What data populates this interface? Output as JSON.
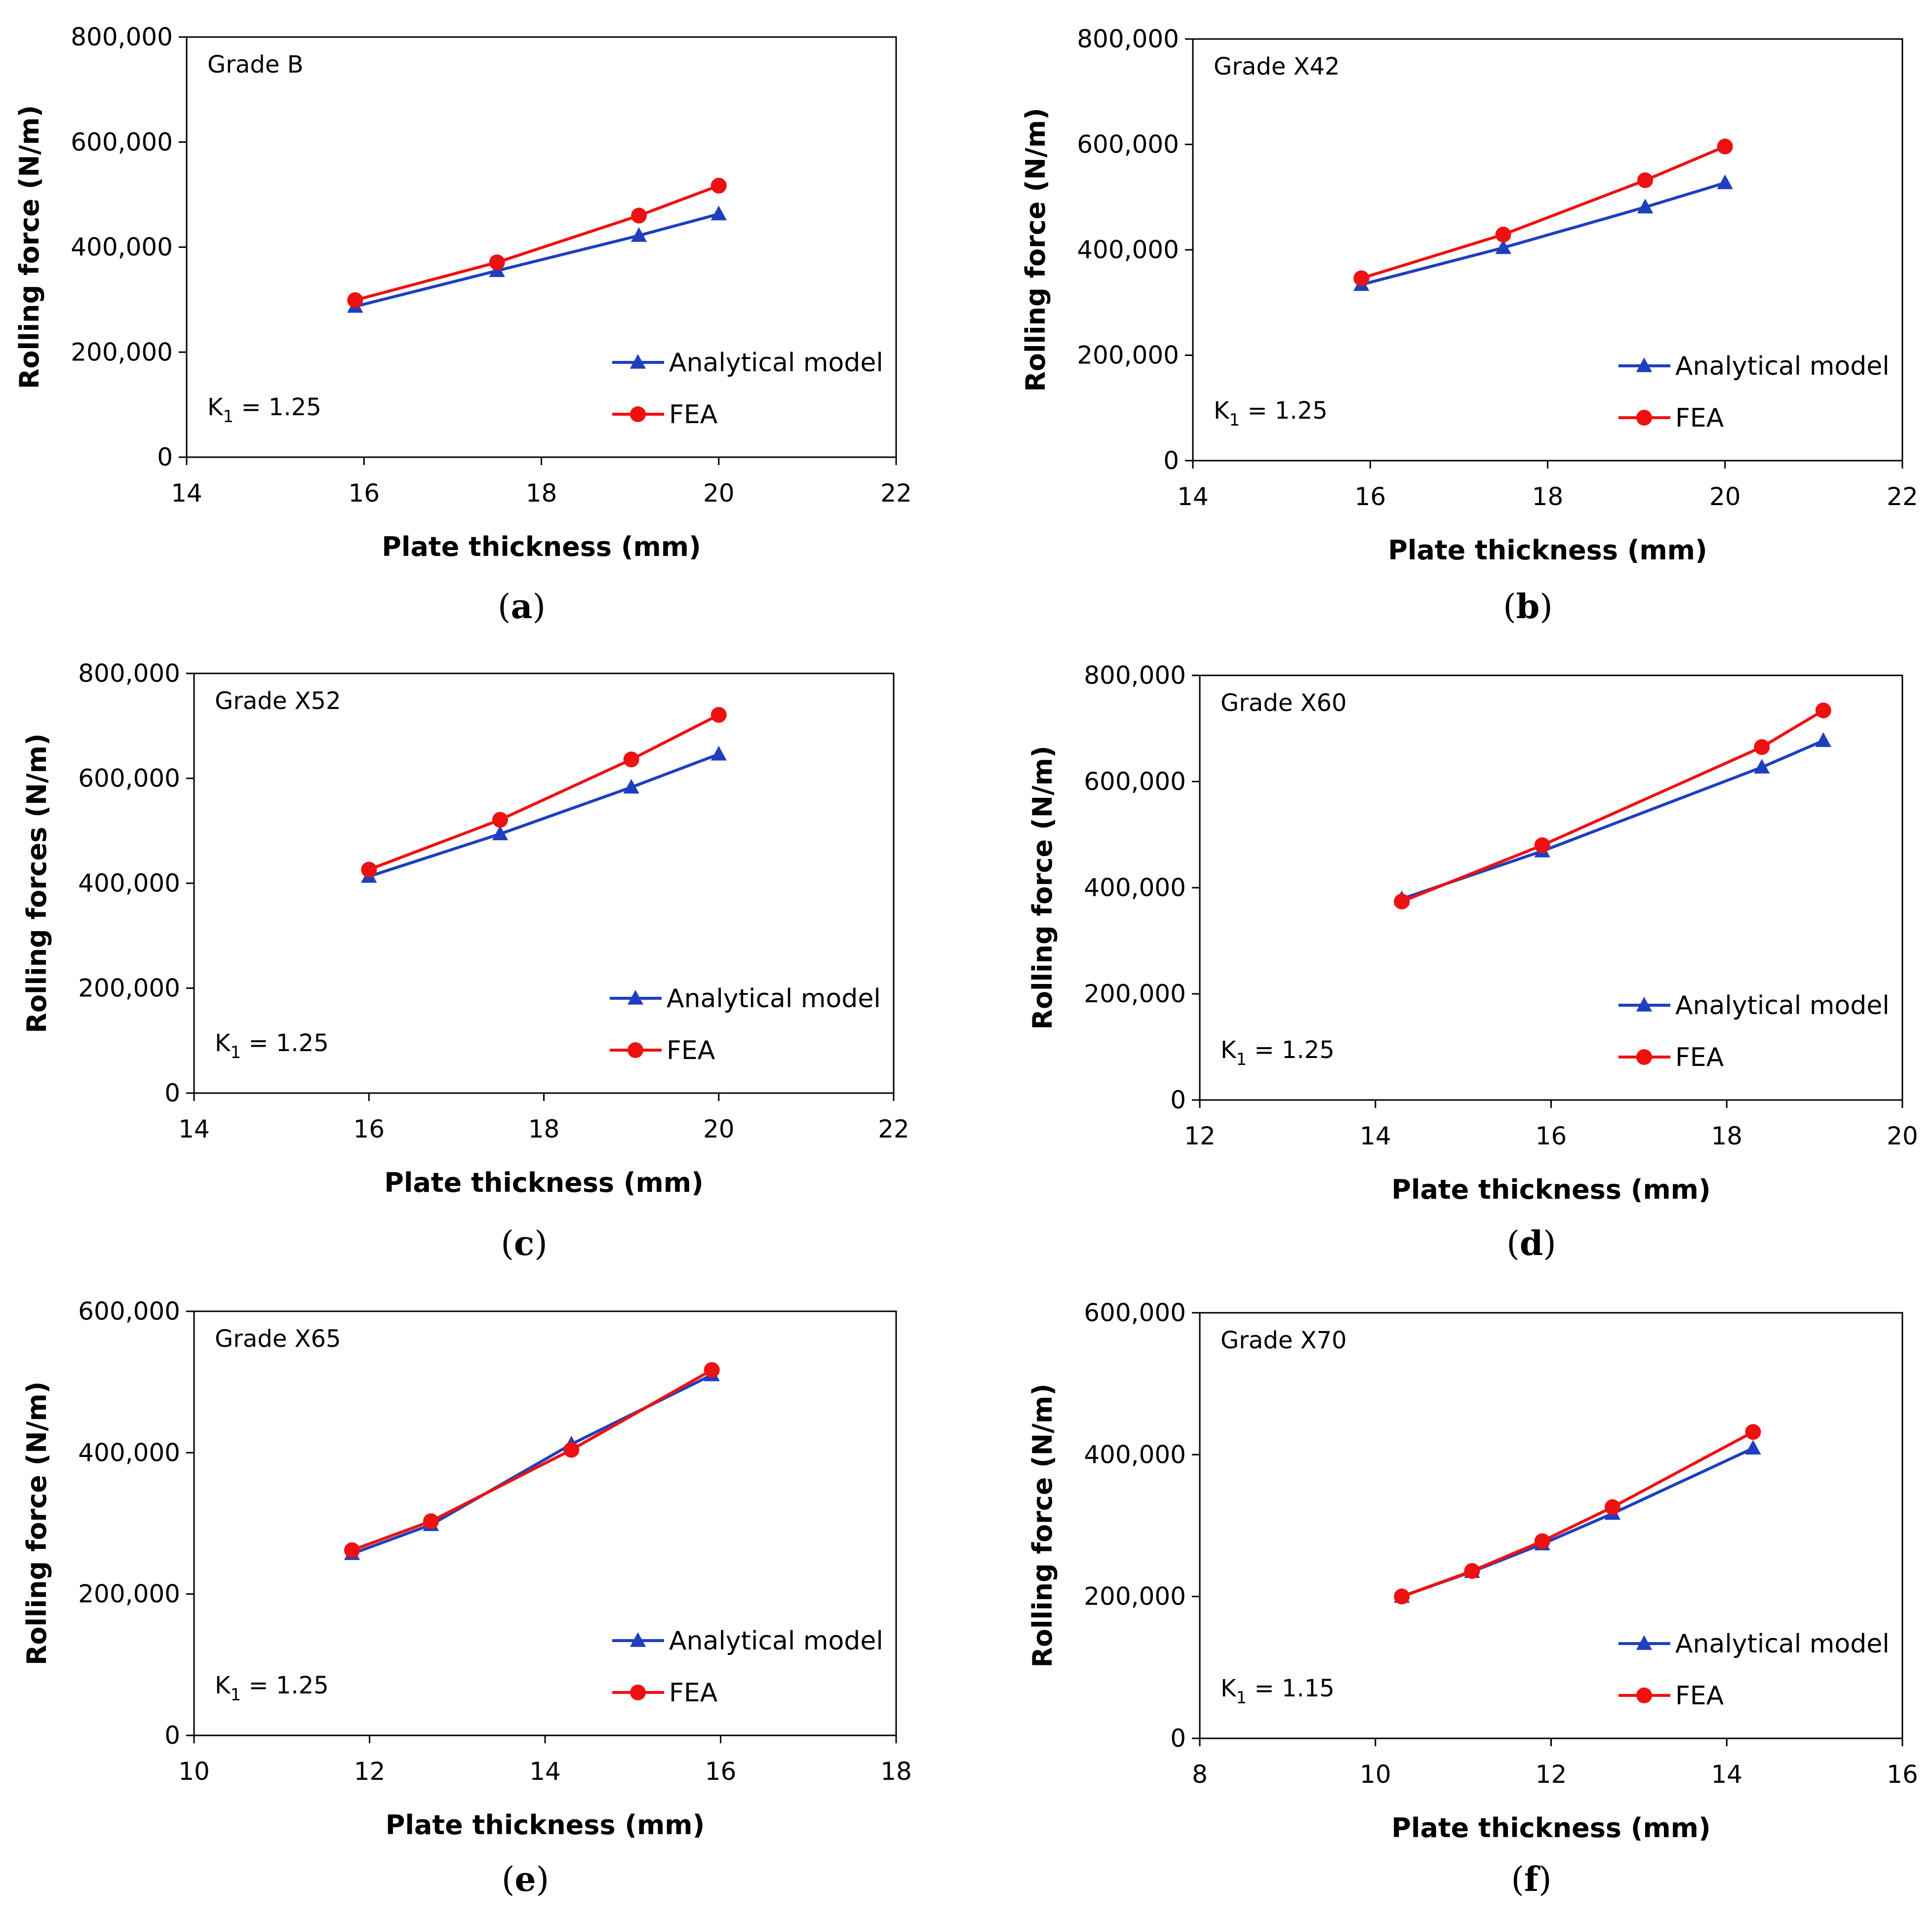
{
  "colors": {
    "analytical": "#1f3fbf",
    "fea": "#ee1111",
    "axis": "#000000"
  },
  "chart_data": [
    {
      "id": "a",
      "type": "line",
      "caption": "a",
      "grade_label": "Grade B",
      "k_label": "K",
      "k_sub": "1",
      "k_value": " = 1.25",
      "xlabel": "Plate thickness (mm)",
      "ylabel": "Rolling force  (N/m)",
      "xlim": [
        14,
        22
      ],
      "xticks": [
        14,
        16,
        18,
        20,
        22
      ],
      "ylim": [
        0,
        800000
      ],
      "yticks": [
        0,
        200000,
        400000,
        600000,
        800000
      ],
      "ytick_labels": [
        "0",
        "200,000",
        "400,000",
        "600,000",
        "800,000"
      ],
      "legend": [
        "Analytical model",
        "FEA"
      ],
      "series": [
        {
          "name": "Analytical model",
          "x": [
            15.9,
            17.5,
            19.1,
            20.0
          ],
          "y": [
            287000,
            355000,
            422000,
            463000
          ]
        },
        {
          "name": "FEA",
          "x": [
            15.9,
            17.5,
            19.1,
            20.0
          ],
          "y": [
            299000,
            371000,
            460000,
            517000
          ]
        }
      ]
    },
    {
      "id": "b",
      "type": "line",
      "caption": "b",
      "grade_label": "Grade X42",
      "k_label": "K",
      "k_sub": "1",
      "k_value": " = 1.25",
      "xlabel": "Plate thickness (mm)",
      "ylabel": "Rolling force  (N/m)",
      "xlim": [
        14,
        22
      ],
      "xticks": [
        14,
        16,
        18,
        20,
        22
      ],
      "ylim": [
        0,
        800000
      ],
      "yticks": [
        0,
        200000,
        400000,
        600000,
        800000
      ],
      "ytick_labels": [
        "0",
        "200,000",
        "400,000",
        "600,000",
        "800,000"
      ],
      "legend": [
        "Analytical model",
        "FEA"
      ],
      "series": [
        {
          "name": "Analytical model",
          "x": [
            15.9,
            17.5,
            19.1,
            20.0
          ],
          "y": [
            334000,
            404000,
            481000,
            527000
          ]
        },
        {
          "name": "FEA",
          "x": [
            15.9,
            17.5,
            19.1,
            20.0
          ],
          "y": [
            346000,
            429000,
            532000,
            596000
          ]
        }
      ]
    },
    {
      "id": "c",
      "type": "line",
      "caption": "c",
      "grade_label": "Grade X52",
      "k_label": "K",
      "k_sub": "1",
      "k_value": " = 1.25",
      "xlabel": "Plate thickness (mm)",
      "ylabel": "Rolling forces  (N/m)",
      "xlim": [
        14,
        22
      ],
      "xticks": [
        14,
        16,
        18,
        20,
        22
      ],
      "ylim": [
        0,
        800000
      ],
      "yticks": [
        0,
        200000,
        400000,
        600000,
        800000
      ],
      "ytick_labels": [
        "0",
        "200,000",
        "400,000",
        "600,000",
        "800,000"
      ],
      "legend": [
        "Analytical model",
        "FEA"
      ],
      "series": [
        {
          "name": "Analytical model",
          "x": [
            16.0,
            17.5,
            19.0,
            20.0
          ],
          "y": [
            413000,
            494000,
            583000,
            646000
          ]
        },
        {
          "name": "FEA",
          "x": [
            16.0,
            17.5,
            19.0,
            20.0
          ],
          "y": [
            426000,
            521000,
            636000,
            721000
          ]
        }
      ]
    },
    {
      "id": "d",
      "type": "line",
      "caption": "d",
      "grade_label": "Grade X60",
      "k_label": "K",
      "k_sub": "1",
      "k_value": " = 1.25",
      "xlabel": "Plate thickness (mm)",
      "ylabel": "Rolling force  (N/m)",
      "xlim": [
        12,
        20
      ],
      "xticks": [
        12,
        14,
        16,
        18,
        20
      ],
      "ylim": [
        0,
        800000
      ],
      "yticks": [
        0,
        200000,
        400000,
        600000,
        800000
      ],
      "ytick_labels": [
        "0",
        "200,000",
        "400,000",
        "600,000",
        "800,000"
      ],
      "legend": [
        "Analytical model",
        "FEA"
      ],
      "series": [
        {
          "name": "Analytical model",
          "x": [
            14.3,
            15.9,
            18.4,
            19.1
          ],
          "y": [
            379000,
            469000,
            627000,
            677000
          ]
        },
        {
          "name": "FEA",
          "x": [
            14.3,
            15.9,
            18.4,
            19.1
          ],
          "y": [
            374000,
            480000,
            665000,
            734000
          ]
        }
      ]
    },
    {
      "id": "e",
      "type": "line",
      "caption": "e",
      "grade_label": "Grade X65",
      "k_label": "K",
      "k_sub": "1",
      "k_value": " = 1.25",
      "xlabel": "Plate thickness (mm)",
      "ylabel": "Rolling force  (N/m)",
      "xlim": [
        10,
        18
      ],
      "xticks": [
        10,
        12,
        14,
        16,
        18
      ],
      "ylim": [
        0,
        600000
      ],
      "yticks": [
        0,
        200000,
        400000,
        600000
      ],
      "ytick_labels": [
        "0",
        "200,000",
        "400,000",
        "600,000"
      ],
      "legend": [
        "Analytical model",
        "FEA"
      ],
      "series": [
        {
          "name": "Analytical model",
          "x": [
            11.8,
            12.7,
            14.3,
            15.9
          ],
          "y": [
            257000,
            298000,
            412000,
            510000
          ]
        },
        {
          "name": "FEA",
          "x": [
            11.8,
            12.7,
            14.3,
            15.9
          ],
          "y": [
            262000,
            303000,
            404000,
            517000
          ]
        }
      ]
    },
    {
      "id": "f",
      "type": "line",
      "caption": "f",
      "grade_label": "Grade X70",
      "k_label": "K",
      "k_sub": "1",
      "k_value": " = 1.15",
      "xlabel": "Plate thickness (mm)",
      "ylabel": "Rolling force  (N/m)",
      "xlim": [
        8,
        16
      ],
      "xticks": [
        8,
        10,
        12,
        14,
        16
      ],
      "ylim": [
        0,
        600000
      ],
      "yticks": [
        0,
        200000,
        400000,
        600000
      ],
      "ytick_labels": [
        "0",
        "200,000",
        "400,000",
        "600,000"
      ],
      "legend": [
        "Analytical model",
        "FEA"
      ],
      "series": [
        {
          "name": "Analytical model",
          "x": [
            10.3,
            11.1,
            11.9,
            12.7,
            14.3
          ],
          "y": [
            200000,
            235000,
            274000,
            317000,
            409000
          ]
        },
        {
          "name": "FEA",
          "x": [
            10.3,
            11.1,
            11.9,
            12.7,
            14.3
          ],
          "y": [
            200000,
            236000,
            278000,
            326000,
            432000
          ]
        }
      ]
    }
  ]
}
